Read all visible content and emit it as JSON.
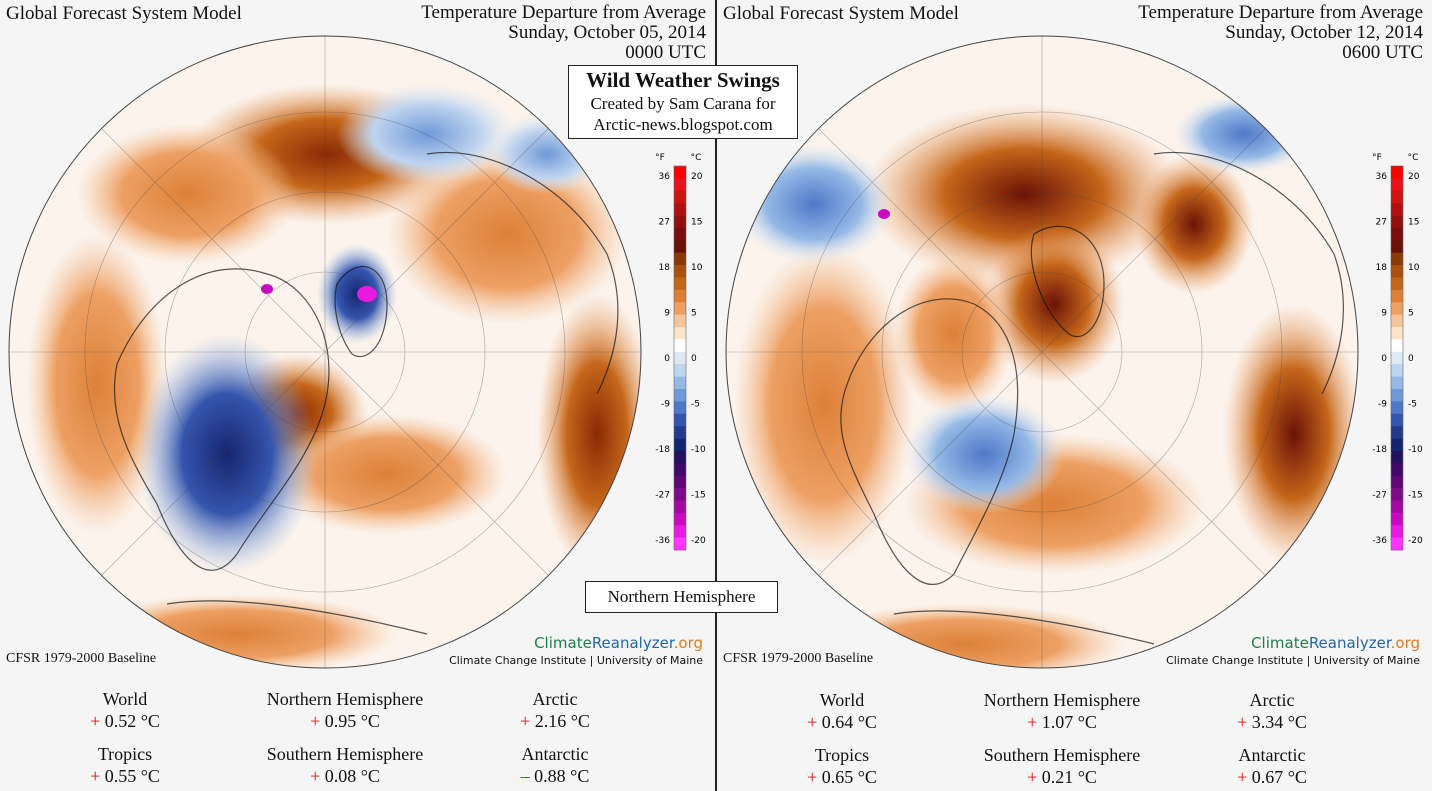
{
  "colors": {
    "warm": "#d2691e",
    "cold": "#3b63c4",
    "plus": "#d11111",
    "minus": "#1d3fd0"
  },
  "overlay": {
    "title": "Wild Weather Swings",
    "line2": "Created by Sam Carana for",
    "line3": "Arctic-news.blogspot.com",
    "region": "Northern Hemisphere"
  },
  "scale": {
    "f_label": "°F",
    "c_label": "°C",
    "f_ticks": [
      "36",
      "27",
      "18",
      "9",
      "0",
      "-9",
      "-18",
      "-27",
      "-36"
    ],
    "c_ticks": [
      "20",
      "15",
      "10",
      "5",
      "0",
      "-5",
      "-10",
      "-15",
      "-20"
    ],
    "colors": [
      "#ff0000",
      "#e8121a",
      "#cc1414",
      "#b01010",
      "#901010",
      "#7a0c0c",
      "#6b1206",
      "#8a3a08",
      "#a8500c",
      "#c4661a",
      "#dc8038",
      "#eda064",
      "#f6c49a",
      "#fbe3cc",
      "#ffffff",
      "#dfe9f6",
      "#bfd4ef",
      "#95b9e6",
      "#6f99d8",
      "#4f78c8",
      "#3555ad",
      "#233a8d",
      "#162570",
      "#22125e",
      "#3f0a6a",
      "#5e0878",
      "#7d0a88",
      "#a00aa0",
      "#c80ac0",
      "#e81ae0",
      "#ff34ff"
    ]
  },
  "panels": [
    {
      "model": "Global Forecast System Model",
      "title": "Temperature Departure from Average",
      "date": "Sunday, October 05, 2014",
      "time": "0000 UTC",
      "baseline": "CFSR 1979-2000 Baseline",
      "brand": {
        "a": "Climate",
        "b": "Reanalyzer",
        "c": ".org",
        "inst": "Climate Change Institute | University of Maine"
      },
      "stats": [
        {
          "label": "World",
          "sign": "+",
          "value": "0.52 °C"
        },
        {
          "label": "Northern Hemisphere",
          "sign": "+",
          "value": "0.95 °C"
        },
        {
          "label": "Arctic",
          "sign": "+",
          "value": "2.16 °C"
        },
        {
          "label": "Tropics",
          "sign": "+",
          "value": "0.55 °C"
        },
        {
          "label": "Southern Hemisphere",
          "sign": "+",
          "value": "0.08 °C"
        },
        {
          "label": "Antarctic",
          "sign": "–",
          "value": "0.88 °C"
        }
      ]
    },
    {
      "model": "Global Forecast System Model",
      "title": "Temperature Departure from Average",
      "date": "Sunday, October 12, 2014",
      "time": "0600 UTC",
      "baseline": "CFSR 1979-2000 Baseline",
      "brand": {
        "a": "Climate",
        "b": "Reanalyzer",
        "c": ".org",
        "inst": "Climate Change Institute | University of Maine"
      },
      "stats": [
        {
          "label": "World",
          "sign": "+",
          "value": "0.64 °C"
        },
        {
          "label": "Northern Hemisphere",
          "sign": "+",
          "value": "1.07 °C"
        },
        {
          "label": "Arctic",
          "sign": "+",
          "value": "3.34 °C"
        },
        {
          "label": "Tropics",
          "sign": "+",
          "value": "0.65 °C"
        },
        {
          "label": "Southern Hemisphere",
          "sign": "+",
          "value": "0.21 °C"
        },
        {
          "label": "Antarctic",
          "sign": "+",
          "value": "0.67 °C"
        }
      ]
    }
  ]
}
